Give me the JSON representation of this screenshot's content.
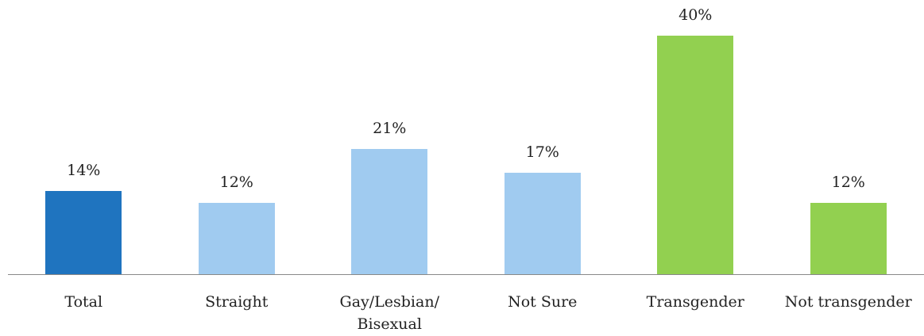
{
  "chart_data": {
    "type": "bar",
    "categories": [
      "Total",
      "Straight",
      "Gay/Lesbian/\nBisexual",
      "Not Sure",
      "Transgender",
      "Not transgender"
    ],
    "values": [
      14,
      12,
      21,
      17,
      40,
      12
    ],
    "value_labels": [
      "14%",
      "12%",
      "21%",
      "17%",
      "40%",
      "12%"
    ],
    "colors": [
      "#1f74bf",
      "#a0cbf0",
      "#a0cbf0",
      "#a0cbf0",
      "#92d050",
      "#92d050"
    ]
  }
}
